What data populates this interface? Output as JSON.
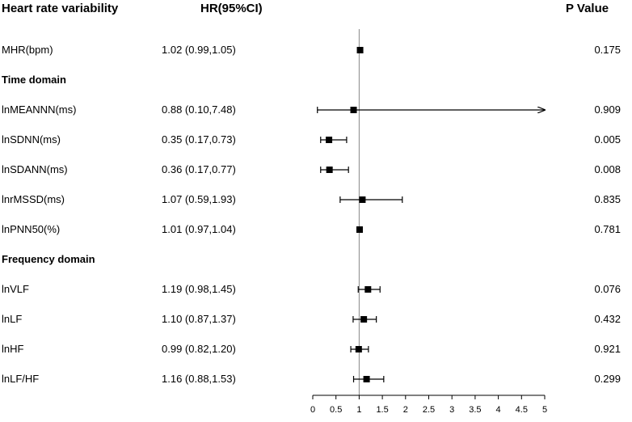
{
  "headers": {
    "variable": "Heart rate variability",
    "hr": "HR(95%CI)",
    "p": "P Value"
  },
  "chart_data": {
    "type": "forest",
    "reference_line": 1,
    "xlim": [
      0,
      5
    ],
    "xticks": [
      "0",
      "0.5",
      "1",
      "1.5",
      "2",
      "2.5",
      "3",
      "3.5",
      "4",
      "4.5",
      "5"
    ],
    "rows": [
      {
        "kind": "item",
        "label": "MHR(bpm)",
        "hr_text": "1.02 (0.99,1.05)",
        "hr": 1.02,
        "lo": 0.99,
        "hi": 1.05,
        "p": "0.175"
      },
      {
        "kind": "section",
        "label": "Time domain"
      },
      {
        "kind": "item",
        "label": "lnMEANNN(ms)",
        "hr_text": "0.88 (0.10,7.48)",
        "hr": 0.88,
        "lo": 0.1,
        "hi": 7.48,
        "p": "0.909"
      },
      {
        "kind": "item",
        "label": "lnSDNN(ms)",
        "hr_text": "0.35 (0.17,0.73)",
        "hr": 0.35,
        "lo": 0.17,
        "hi": 0.73,
        "p": "0.005"
      },
      {
        "kind": "item",
        "label": "lnSDANN(ms)",
        "hr_text": "0.36 (0.17,0.77)",
        "hr": 0.36,
        "lo": 0.17,
        "hi": 0.77,
        "p": "0.008"
      },
      {
        "kind": "item",
        "label": "lnrMSSD(ms)",
        "hr_text": "1.07 (0.59,1.93)",
        "hr": 1.07,
        "lo": 0.59,
        "hi": 1.93,
        "p": "0.835"
      },
      {
        "kind": "item",
        "label": "lnPNN50(%)",
        "hr_text": "1.01 (0.97,1.04)",
        "hr": 1.01,
        "lo": 0.97,
        "hi": 1.04,
        "p": "0.781"
      },
      {
        "kind": "section",
        "label": "Frequency domain"
      },
      {
        "kind": "item",
        "label": "lnVLF",
        "hr_text": "1.19 (0.98,1.45)",
        "hr": 1.19,
        "lo": 0.98,
        "hi": 1.45,
        "p": "0.076"
      },
      {
        "kind": "item",
        "label": "lnLF",
        "hr_text": "1.10 (0.87,1.37)",
        "hr": 1.1,
        "lo": 0.87,
        "hi": 1.37,
        "p": "0.432"
      },
      {
        "kind": "item",
        "label": "lnHF",
        "hr_text": "0.99 (0.82,1.20)",
        "hr": 0.99,
        "lo": 0.82,
        "hi": 1.2,
        "p": "0.921"
      },
      {
        "kind": "item",
        "label": "lnLF/HF",
        "hr_text": "1.16 (0.88,1.53)",
        "hr": 1.16,
        "lo": 0.88,
        "hi": 1.53,
        "p": "0.299"
      }
    ]
  }
}
